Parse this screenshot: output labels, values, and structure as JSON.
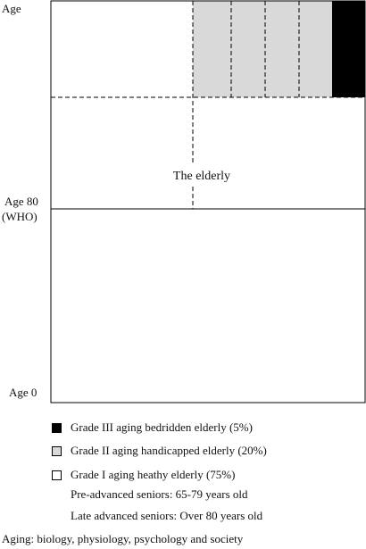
{
  "axis_labels": {
    "top": "Age",
    "age80_line1": "Age 80",
    "age80_line2": "(WHO)",
    "bottom": "Age 0"
  },
  "center_label": "The elderly",
  "colors": {
    "grade3": "#000000",
    "grade2": "#d9d9d9",
    "grade1": "#ffffff",
    "border": "#000000"
  },
  "legend": [
    {
      "label": "Grade III aging bedridden elderly (5%)",
      "color": "#000000",
      "share": 0.05
    },
    {
      "label": "Grade II aging handicapped elderly (20%)",
      "color": "#d9d9d9",
      "share": 0.2
    },
    {
      "label": "Grade I aging heathy elderly (75%)",
      "color": "#ffffff",
      "share": 0.75
    }
  ],
  "notes": [
    "Pre-advanced seniors: 65-79 years old",
    "Late advanced seniors: Over 80 years old"
  ],
  "caption": "Aging: biology, physiology, psychology and society"
}
